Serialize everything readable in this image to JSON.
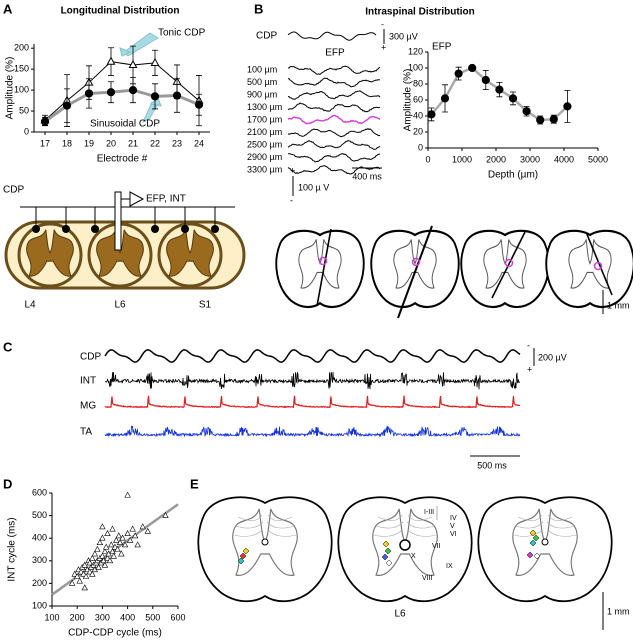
{
  "panels": [
    "A",
    "B",
    "C",
    "D",
    "E"
  ],
  "chart_data": [
    {
      "type": "line",
      "title": "Longitudinal Distribution",
      "x_label": "Electrode #",
      "y_label": "Amplitude (%)",
      "categories": [
        "17",
        "18",
        "19",
        "20",
        "21",
        "22",
        "23",
        "24"
      ],
      "series": [
        {
          "name": "Tonic CDP",
          "color": "#000000",
          "marker": "triangle",
          "filled": false,
          "values": [
            28,
            75,
            118,
            168,
            160,
            165,
            120,
            75
          ],
          "errors": [
            12,
            62,
            40,
            33,
            45,
            30,
            40,
            60
          ]
        },
        {
          "name": "Sinusoidal CDP",
          "color": "#999999",
          "marker": "circle",
          "filled": true,
          "values": [
            25,
            63,
            92,
            95,
            100,
            85,
            87,
            65
          ],
          "errors": [
            10,
            40,
            35,
            25,
            30,
            30,
            40,
            25
          ]
        }
      ],
      "ylim": [
        0,
        210
      ],
      "yticks": [
        0,
        50,
        100,
        150,
        200
      ]
    },
    {
      "type": "line",
      "label": "EFP",
      "x_label": "Depth (µm)",
      "y_label": "Amplitude (%)",
      "x": [
        100,
        500,
        900,
        1300,
        1700,
        2100,
        2500,
        2900,
        3300,
        3700,
        4100
      ],
      "values": [
        42,
        62,
        93,
        100,
        85,
        73,
        62,
        46,
        35,
        36,
        52
      ],
      "errors": [
        8,
        17,
        8,
        2,
        12,
        9,
        8,
        6,
        5,
        5,
        20
      ],
      "color": "#000000",
      "line_color": "#aaaaaa",
      "marker": "circle",
      "filled": true,
      "xlim": [
        0,
        5000
      ],
      "xticks": [
        0,
        1000,
        2000,
        3000,
        4000,
        5000
      ],
      "ylim": [
        0,
        120
      ],
      "yticks": [
        0,
        20,
        40,
        60,
        80,
        100,
        120
      ]
    },
    {
      "type": "scatter",
      "x_label": "CDP-CDP cycle (ms)",
      "y_label": "INT cycle (ms)",
      "x": [
        180,
        190,
        200,
        205,
        210,
        215,
        220,
        225,
        230,
        235,
        240,
        245,
        250,
        250,
        255,
        260,
        260,
        265,
        270,
        270,
        275,
        280,
        280,
        285,
        290,
        290,
        295,
        300,
        300,
        305,
        310,
        310,
        315,
        320,
        320,
        325,
        330,
        335,
        340,
        340,
        345,
        350,
        355,
        360,
        365,
        370,
        375,
        380,
        390,
        400,
        410,
        420,
        430,
        440,
        460,
        480,
        400,
        550,
        230,
        300
      ],
      "y": [
        200,
        240,
        230,
        260,
        210,
        250,
        270,
        240,
        280,
        230,
        260,
        300,
        250,
        290,
        270,
        240,
        310,
        280,
        260,
        330,
        290,
        300,
        350,
        270,
        310,
        380,
        290,
        320,
        400,
        300,
        340,
        280,
        360,
        310,
        420,
        330,
        300,
        370,
        340,
        440,
        320,
        360,
        390,
        350,
        410,
        380,
        330,
        400,
        370,
        420,
        390,
        440,
        410,
        370,
        450,
        430,
        590,
        500,
        180,
        450
      ],
      "color": "#000000",
      "marker": "triangle",
      "filled": false,
      "fit": {
        "x": [
          100,
          600
        ],
        "y": [
          150,
          550
        ],
        "color": "#999999"
      },
      "xlim": [
        100,
        600
      ],
      "xticks": [
        100,
        200,
        300,
        400,
        500,
        600
      ],
      "ylim": [
        100,
        600
      ],
      "yticks": [
        100,
        200,
        300,
        400,
        500,
        600
      ]
    }
  ],
  "section_a": {
    "cdp": "CDP",
    "electrode": "EFP, INT",
    "segments": [
      "L4",
      "L6",
      "S1"
    ]
  },
  "section_b": {
    "title": "Intraspinal Distribution",
    "cdp": "CDP",
    "efp": "EFP",
    "depths": [
      "100 µm",
      "500 µm",
      "900 µm",
      "1300 µm",
      "1700 µm",
      "2100 µm",
      "2500 µm",
      "2900 µm",
      "3300 µm"
    ],
    "scale_cdp": "300 µV",
    "scale_time": "400 ms",
    "scale_efp": "100 µ V",
    "scale_section": "1 mm",
    "polarity": [
      "-",
      "+"
    ]
  },
  "section_c": {
    "traces": [
      "CDP",
      "INT",
      "MG",
      "TA"
    ],
    "scale_v": "200 µV",
    "scale_time": "500 ms",
    "polarity": [
      "-",
      "+"
    ]
  },
  "section_e": {
    "segment": "L6",
    "laminae": [
      "I-III",
      "IV",
      "V",
      "VI",
      "VII",
      "VIII",
      "IX",
      "X"
    ],
    "scale": "1 mm"
  }
}
